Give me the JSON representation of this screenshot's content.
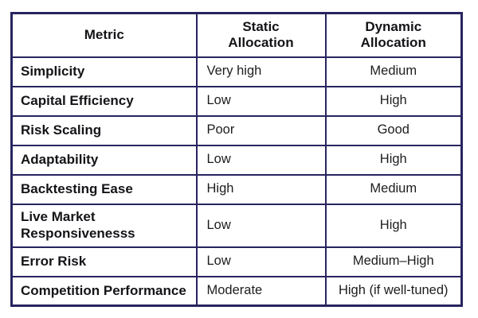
{
  "colors": {
    "border": "#27245f",
    "header_text": "#141418",
    "body_text": "#1d1d1f",
    "background": "#ffffff"
  },
  "table": {
    "headers": [
      "Metric",
      "Static Allocation",
      "Dynamic Allocation"
    ],
    "rows": [
      {
        "metric": "Simplicity",
        "static": "Very high",
        "dynamic": "Medium"
      },
      {
        "metric": "Capital Efficiency",
        "static": "Low",
        "dynamic": "High"
      },
      {
        "metric": "Risk Scaling",
        "static": "Poor",
        "dynamic": "Good"
      },
      {
        "metric": "Adaptability",
        "static": "Low",
        "dynamic": "High"
      },
      {
        "metric": "Backtesting Ease",
        "static": "High",
        "dynamic": "Medium"
      },
      {
        "metric": "Live Market Responsivenesss",
        "static": "Low",
        "dynamic": "High"
      },
      {
        "metric": "Error Risk",
        "static": "Low",
        "dynamic": "Medium–High"
      },
      {
        "metric": "Competition Performance",
        "static": "Moderate",
        "dynamic": "High (if well-tuned)"
      }
    ]
  },
  "chart_data": {
    "type": "table",
    "columns": [
      "Metric",
      "Static Allocation",
      "Dynamic Allocation"
    ],
    "rows": [
      [
        "Simplicity",
        "Very high",
        "Medium"
      ],
      [
        "Capital Efficiency",
        "Low",
        "High"
      ],
      [
        "Risk Scaling",
        "Poor",
        "Good"
      ],
      [
        "Adaptability",
        "Low",
        "High"
      ],
      [
        "Backtesting Ease",
        "High",
        "Medium"
      ],
      [
        "Live Market Responsivenesss",
        "Low",
        "High"
      ],
      [
        "Error Risk",
        "Low",
        "Medium–High"
      ],
      [
        "Competition Performance",
        "Moderate",
        "High (if well-tuned)"
      ]
    ]
  }
}
